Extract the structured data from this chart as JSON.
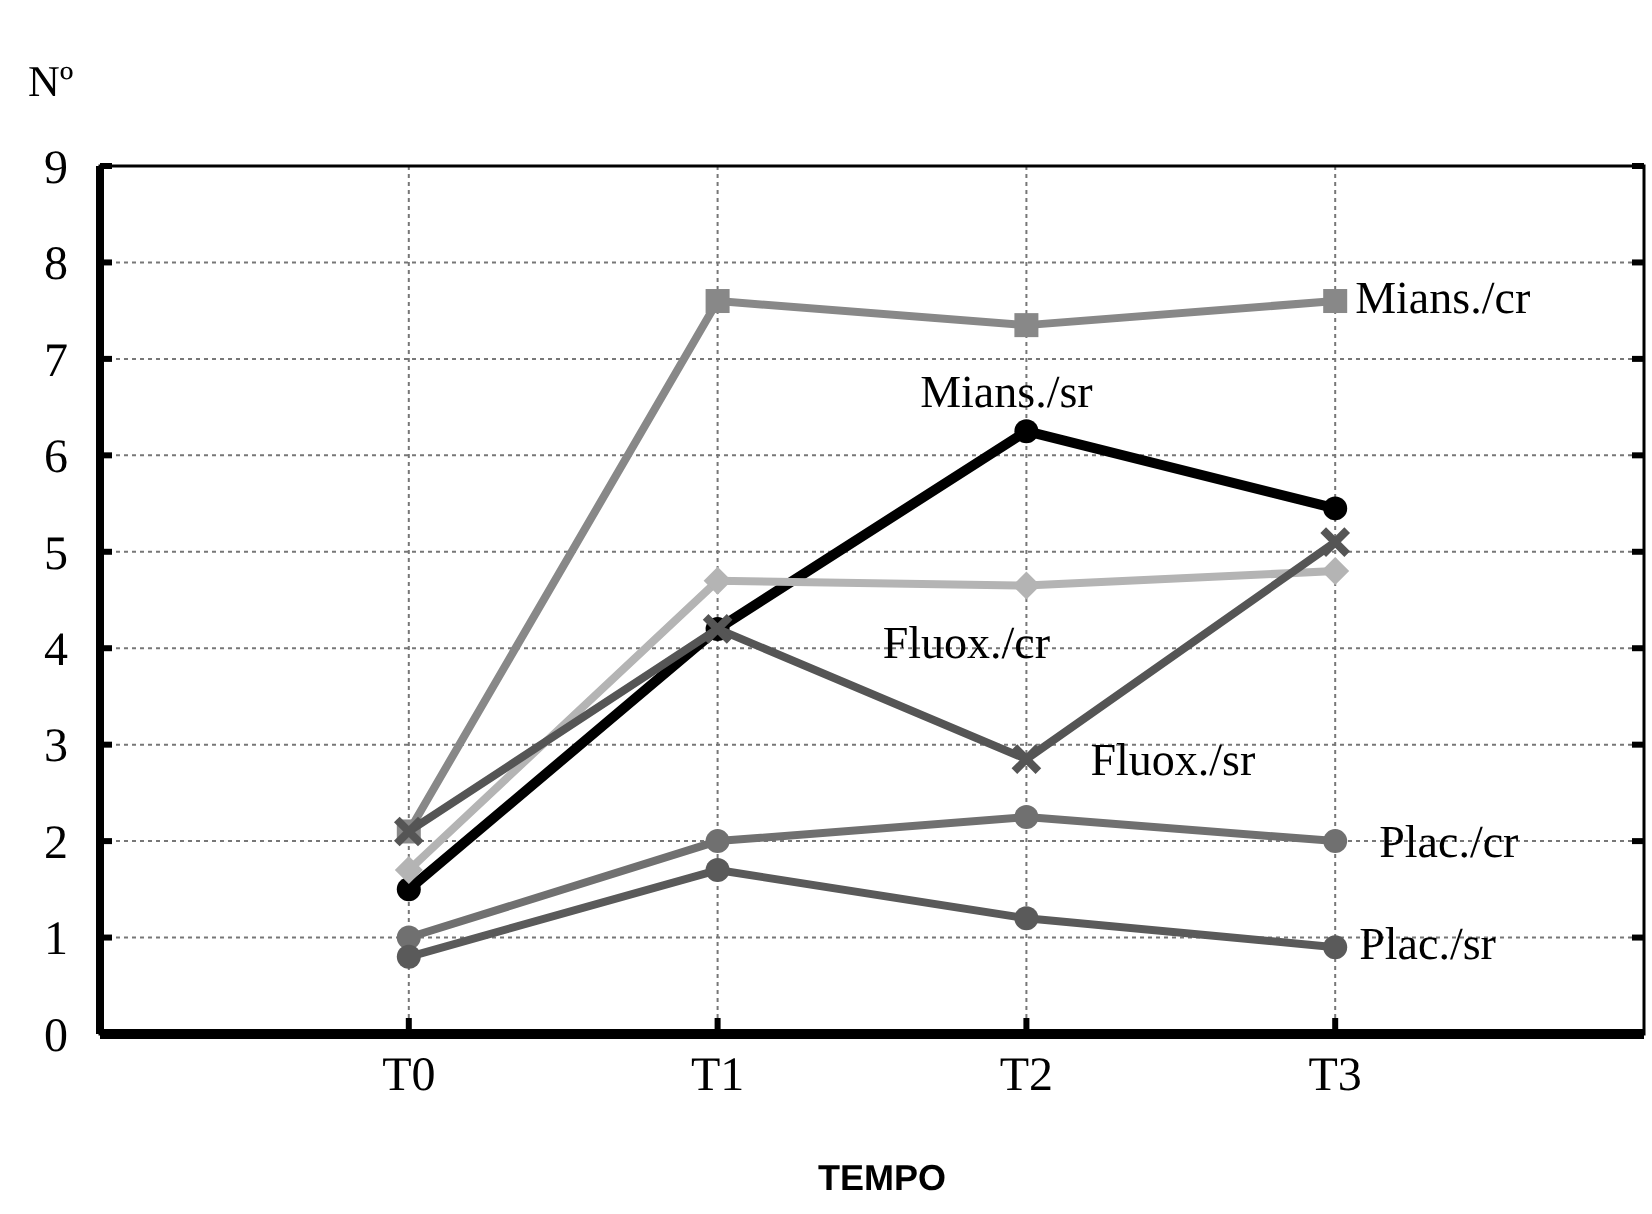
{
  "chart_data": {
    "type": "line",
    "ylabel": "Nº",
    "xlabel": "TEMPO",
    "categories": [
      "T0",
      "T1",
      "T2",
      "T3"
    ],
    "ylim": [
      0,
      9
    ],
    "yticks": [
      0,
      1,
      2,
      3,
      4,
      5,
      6,
      7,
      8,
      9
    ],
    "grid": true,
    "line_style": "solid",
    "series": [
      {
        "name": "Mians./cr",
        "color": "#888888",
        "marker": "square",
        "values": [
          2.1,
          7.6,
          7.35,
          7.6
        ]
      },
      {
        "name": "Mians./sr",
        "color": "#000000",
        "marker": "circle",
        "values": [
          1.5,
          4.2,
          6.25,
          5.45
        ]
      },
      {
        "name": "Fluox./cr",
        "color": "#b4b4b4",
        "marker": "diamond",
        "values": [
          1.7,
          4.7,
          4.65,
          4.8
        ]
      },
      {
        "name": "Fluox./sr",
        "color": "#555555",
        "marker": "cross",
        "values": [
          2.1,
          4.2,
          2.85,
          5.1
        ]
      },
      {
        "name": "Plac./cr",
        "color": "#707070",
        "marker": "circle",
        "values": [
          1.0,
          2.0,
          2.25,
          2.0
        ]
      },
      {
        "name": "Plac./sr",
        "color": "#5a5a5a",
        "marker": "circle",
        "values": [
          0.8,
          1.7,
          1.2,
          0.9
        ]
      }
    ]
  }
}
